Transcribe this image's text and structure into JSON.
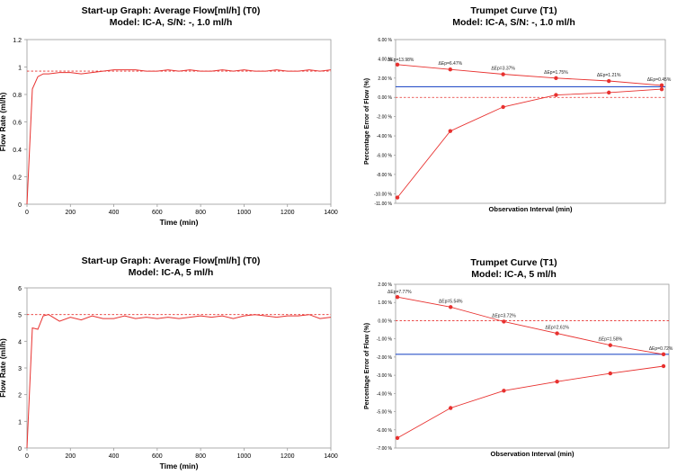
{
  "chart_data": [
    {
      "type": "line",
      "title_line1": "Start-up Graph: Average Flow[ml/h] (T0)",
      "title_line2": "Model: IC-A, S/N: -, 1.0 ml/h",
      "xlabel": "Time (min)",
      "ylabel": "Flow Rate (ml/h)",
      "xlim": [
        0,
        1400
      ],
      "ylim": [
        0,
        1.2
      ],
      "xticks": [
        0,
        200,
        400,
        600,
        800,
        1000,
        1200,
        1400
      ],
      "yticks": [
        0,
        0.2,
        0.4,
        0.6,
        0.8,
        1,
        1.2
      ],
      "ytick_labels": [
        "0",
        "0.2",
        "0.4",
        "0.6",
        "0.8",
        "1",
        "1.2"
      ],
      "reference_line": 0.97,
      "series": [
        {
          "x": [
            0,
            25,
            50,
            75,
            100,
            150,
            200,
            250,
            300,
            350,
            400,
            450,
            500,
            550,
            600,
            650,
            700,
            750,
            800,
            850,
            900,
            950,
            1000,
            1050,
            1100,
            1150,
            1200,
            1250,
            1300,
            1350,
            1400
          ],
          "values": [
            0,
            0.84,
            0.93,
            0.95,
            0.95,
            0.96,
            0.96,
            0.95,
            0.96,
            0.97,
            0.98,
            0.98,
            0.98,
            0.97,
            0.97,
            0.98,
            0.97,
            0.98,
            0.97,
            0.97,
            0.98,
            0.97,
            0.98,
            0.97,
            0.97,
            0.98,
            0.97,
            0.97,
            0.98,
            0.97,
            0.98
          ],
          "color": "#e8312f"
        }
      ]
    },
    {
      "type": "line",
      "title_line1": "Trumpet Curve (T1)",
      "title_line2": "Model: IC-A, S/N: -, 1.0 ml/h",
      "xlabel": "Observation Interval (min)",
      "ylabel": "Percentage Error of Flow (%)",
      "ylim": [
        -11,
        6
      ],
      "yticks": [
        6,
        4,
        2,
        0,
        -2,
        -4,
        -6,
        -8,
        -10,
        -11
      ],
      "ytick_labels": [
        "6.00 %",
        "4.00 %",
        "2.00 %",
        "0.00 %",
        "-2.00 %",
        "-4.00 %",
        "-6.00 %",
        "-8.00 %",
        "-10.00 %",
        "-11.00 %"
      ],
      "x": [
        1,
        2,
        3,
        4,
        5,
        6
      ],
      "series": [
        {
          "name": "max",
          "values": [
            3.4,
            2.9,
            2.4,
            2.0,
            1.7,
            1.25
          ],
          "color": "#e8312f"
        },
        {
          "name": "min",
          "values": [
            -10.4,
            -3.5,
            -1.0,
            0.25,
            0.5,
            0.85
          ],
          "color": "#e8312f"
        }
      ],
      "mean_line": 1.1,
      "zero_line": 0.0,
      "annotations": [
        "ΔEp=13.98%",
        "ΔEp=6.47%",
        "ΔEp=3.37%",
        "ΔEp=1.75%",
        "ΔEp=1.21%",
        "ΔEp=0.45%"
      ]
    },
    {
      "type": "line",
      "title_line1": "Start-up Graph: Average Flow[ml/h] (T0)",
      "title_line2": "Model: IC-A, 5 ml/h",
      "xlabel": "Time (min)",
      "ylabel": "Flow Rate (ml/h)",
      "xlim": [
        0,
        1400
      ],
      "ylim": [
        0,
        6
      ],
      "xticks": [
        0,
        200,
        400,
        600,
        800,
        1000,
        1200,
        1400
      ],
      "yticks": [
        0,
        1,
        2,
        3,
        4,
        5,
        6
      ],
      "ytick_labels": [
        "0",
        "1",
        "2",
        "3",
        "4",
        "5",
        "6"
      ],
      "reference_line": 5,
      "series": [
        {
          "x": [
            0,
            25,
            50,
            75,
            100,
            150,
            200,
            250,
            300,
            350,
            400,
            450,
            500,
            550,
            600,
            650,
            700,
            750,
            800,
            850,
            900,
            950,
            1000,
            1050,
            1100,
            1150,
            1200,
            1250,
            1300,
            1350,
            1400
          ],
          "values": [
            0,
            4.5,
            4.45,
            4.95,
            5.0,
            4.75,
            4.9,
            4.8,
            4.95,
            4.85,
            4.85,
            4.95,
            4.85,
            4.9,
            4.85,
            4.9,
            4.85,
            4.9,
            4.95,
            4.9,
            4.95,
            4.85,
            4.95,
            5.0,
            4.95,
            4.9,
            4.95,
            4.95,
            5.0,
            4.85,
            4.9
          ],
          "color": "#e8312f"
        }
      ]
    },
    {
      "type": "line",
      "title_line1": "Trumpet Curve (T1)",
      "title_line2": "Model: IC-A, 5 ml/h",
      "xlabel": "Observation Interval (min)",
      "ylabel": "Percentage Error of Flow (%)",
      "ylim": [
        -7,
        2
      ],
      "yticks": [
        2,
        1,
        0,
        -1,
        -2,
        -3,
        -4,
        -5,
        -6,
        -7
      ],
      "ytick_labels": [
        "2.00 %",
        "1.00 %",
        "0.00 %",
        "-1.00 %",
        "-2.00 %",
        "-3.00 %",
        "-4.00 %",
        "-5.00 %",
        "-6.00 %",
        "-7.00 %"
      ],
      "x": [
        1,
        2,
        3,
        4,
        5,
        6
      ],
      "series": [
        {
          "name": "max",
          "values": [
            1.3,
            0.75,
            -0.05,
            -0.7,
            -1.35,
            -1.85
          ],
          "color": "#e8312f"
        },
        {
          "name": "min",
          "values": [
            -6.45,
            -4.8,
            -3.85,
            -3.35,
            -2.9,
            -2.5
          ],
          "color": "#e8312f"
        }
      ],
      "mean_line": -1.85,
      "zero_line": 0.0,
      "annotations": [
        "ΔEp=7.77%",
        "ΔEp=5.54%",
        "ΔEp=3.72%",
        "ΔEp=2.61%",
        "ΔEp=1.58%",
        "ΔEp=0.72%"
      ]
    }
  ]
}
